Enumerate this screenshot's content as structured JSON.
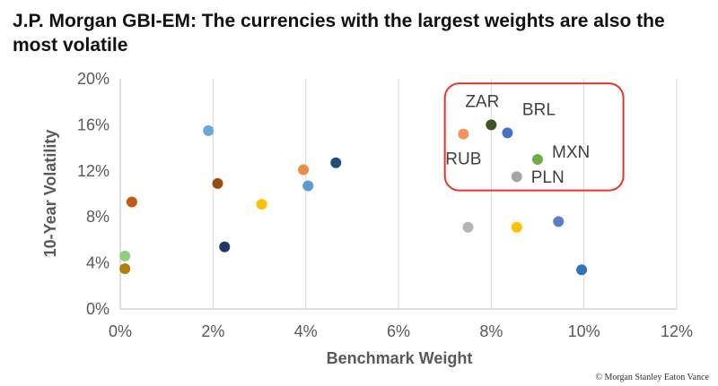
{
  "title": "J.P. Morgan GBI-EM:  The currencies with the largest weights are also the most volatile",
  "footer": "© Morgan Stanley Eaton Vance",
  "chart_data": {
    "type": "scatter",
    "xlabel": "Benchmark Weight",
    "ylabel": "10-Year Volatility",
    "xlim": [
      0,
      12
    ],
    "ylim": [
      0,
      20
    ],
    "x_ticks": [
      "0%",
      "2%",
      "4%",
      "6%",
      "8%",
      "10%",
      "12%"
    ],
    "y_ticks": [
      "0%",
      "4%",
      "8%",
      "12%",
      "16%",
      "20%"
    ],
    "grid": "vertical",
    "points": [
      {
        "x": 0.1,
        "y": 4.6,
        "color": "#8fcf7a"
      },
      {
        "x": 0.1,
        "y": 3.5,
        "color": "#b07d0c"
      },
      {
        "x": 0.25,
        "y": 9.3,
        "color": "#c55a11"
      },
      {
        "x": 1.9,
        "y": 15.5,
        "color": "#6ea6dc"
      },
      {
        "x": 2.1,
        "y": 10.9,
        "color": "#9a4c0c"
      },
      {
        "x": 2.25,
        "y": 5.4,
        "color": "#1f3864"
      },
      {
        "x": 3.05,
        "y": 9.1,
        "color": "#ffc000"
      },
      {
        "x": 3.95,
        "y": 12.1,
        "color": "#ed8b4a"
      },
      {
        "x": 4.05,
        "y": 10.7,
        "color": "#5b9bd5"
      },
      {
        "x": 4.65,
        "y": 12.7,
        "color": "#1f4e79"
      },
      {
        "x": 7.4,
        "y": 15.2,
        "color": "#f4925b",
        "label": "RUB"
      },
      {
        "x": 8.0,
        "y": 16.0,
        "color": "#375623",
        "label": "ZAR"
      },
      {
        "x": 8.35,
        "y": 15.3,
        "color": "#4472c4",
        "label": "BRL"
      },
      {
        "x": 9.0,
        "y": 13.0,
        "color": "#70ad47",
        "label": "MXN"
      },
      {
        "x": 8.55,
        "y": 11.5,
        "color": "#a5a5a5",
        "label": "PLN"
      },
      {
        "x": 7.5,
        "y": 7.1,
        "color": "#b4b4b4"
      },
      {
        "x": 8.55,
        "y": 7.1,
        "color": "#ffc000"
      },
      {
        "x": 9.45,
        "y": 7.6,
        "color": "#5b7fc0"
      },
      {
        "x": 9.95,
        "y": 3.4,
        "color": "#2e75b6"
      }
    ],
    "highlight_color": "#e8332a"
  }
}
